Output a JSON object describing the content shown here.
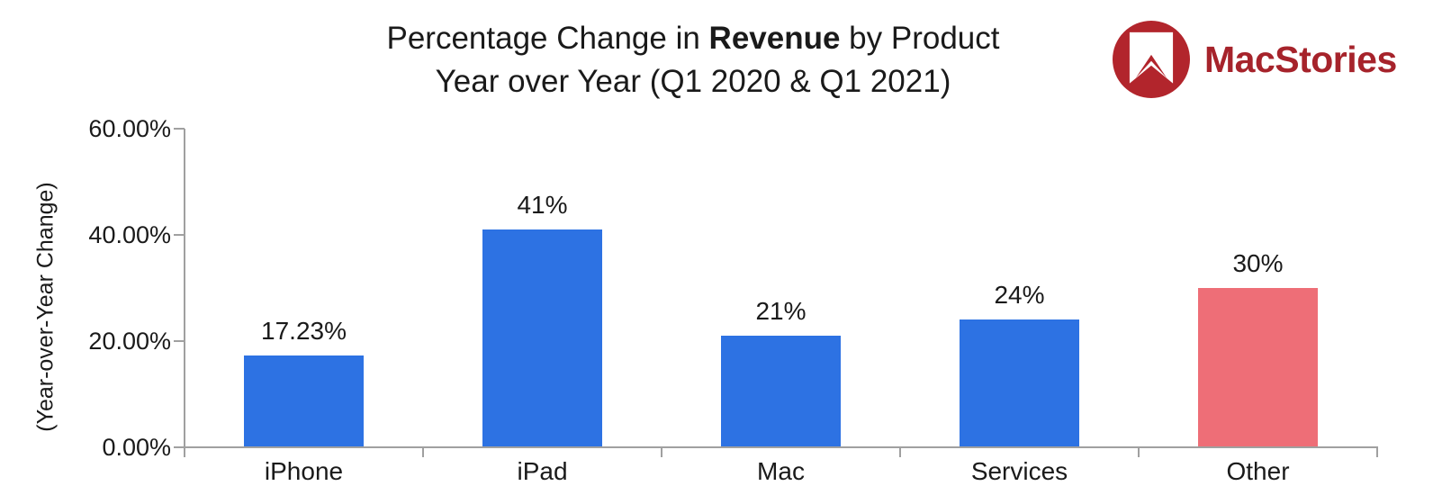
{
  "header": {
    "title_prefix": "Percentage Change in ",
    "title_bold": "Revenue",
    "title_suffix": " by Product",
    "title_line2": "Year over Year (Q1 2020 & Q1 2021)"
  },
  "logo": {
    "wordmark": "MacStories",
    "icon": "bookmark-icon",
    "circle_color": "#B2252C",
    "bookmark_color": "#FFFFFF",
    "wordmark_color": "#A6232B"
  },
  "chart_data": {
    "type": "bar",
    "title": "Percentage Change in Revenue by Product Year over Year (Q1 2020 & Q1 2021)",
    "xlabel": "",
    "ylabel": "(Year-over-Year Change)",
    "ylim": [
      0,
      60
    ],
    "yticks": [
      {
        "value": 0,
        "label": "0.00%"
      },
      {
        "value": 20,
        "label": "20.00%"
      },
      {
        "value": 40,
        "label": "40.00%"
      },
      {
        "value": 60,
        "label": "60.00%"
      }
    ],
    "grid": false,
    "legend": "none",
    "categories": [
      "iPhone",
      "iPad",
      "Mac",
      "Services",
      "Other"
    ],
    "values": [
      17.23,
      41,
      21,
      24,
      30
    ],
    "value_labels": [
      "17.23%",
      "41%",
      "21%",
      "24%",
      "30%"
    ],
    "bar_colors": [
      "#2D72E3",
      "#2D72E3",
      "#2D72E3",
      "#2D72E3",
      "#EE6E77"
    ],
    "axis_color": "#A0A0A0",
    "text_color": "#1A1A1A"
  }
}
